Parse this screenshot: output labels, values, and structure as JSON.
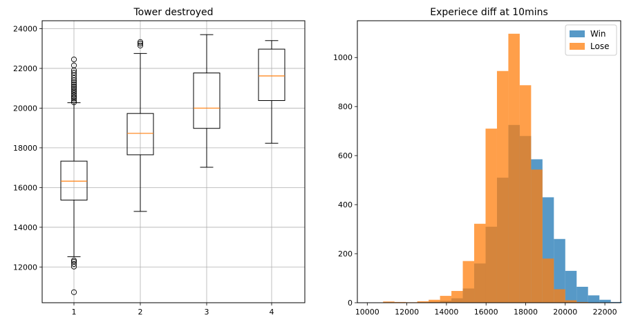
{
  "chart_data": [
    {
      "type": "box",
      "title": "Tower destroyed",
      "xlabel": "",
      "ylabel": "",
      "grid": true,
      "ylim": [
        10200,
        24400
      ],
      "categories": [
        "1",
        "2",
        "3",
        "4"
      ],
      "yticks": [
        12000,
        14000,
        16000,
        18000,
        20000,
        22000,
        24000
      ],
      "boxes": [
        {
          "category": "1",
          "whisker_low": 12520,
          "q1": 15370,
          "median": 16320,
          "q3": 17330,
          "whisker_high": 20270,
          "outliers": [
            10730,
            12020,
            12150,
            12260,
            12330,
            20290,
            20380,
            20480,
            20560,
            20650,
            20740,
            20830,
            20920,
            21010,
            21100,
            21200,
            21300,
            21400,
            21520,
            21650,
            21780,
            21900,
            22150,
            22450
          ]
        },
        {
          "category": "2",
          "whisker_low": 14800,
          "q1": 17650,
          "median": 18730,
          "q3": 19730,
          "whisker_high": 22750,
          "outliers": [
            23150,
            23250,
            23330
          ]
        },
        {
          "category": "3",
          "whisker_low": 17020,
          "q1": 18980,
          "median": 20000,
          "q3": 21770,
          "whisker_high": 23700,
          "outliers": []
        },
        {
          "category": "4",
          "whisker_low": 18230,
          "q1": 20380,
          "median": 21620,
          "q3": 22970,
          "whisker_high": 23400,
          "outliers": []
        }
      ],
      "colors": {
        "box": "#000000",
        "median": "#ff7f0e",
        "grid": "#b0b0b0"
      }
    },
    {
      "type": "histogram",
      "title": "Experiece diff at 10mins",
      "xlabel": "",
      "ylabel": "",
      "grid": false,
      "xlim": [
        9500,
        22800
      ],
      "ylim": [
        0,
        1150
      ],
      "xticks": [
        10000,
        12000,
        14000,
        16000,
        18000,
        20000,
        22000
      ],
      "yticks": [
        0,
        200,
        400,
        600,
        800,
        1000
      ],
      "legend": {
        "placement": "top-right"
      },
      "series": [
        {
          "name": "Win",
          "color": "#1f77b4",
          "opacity": 0.75,
          "bin_start": 10800,
          "bin_width": 575,
          "counts": [
            0,
            0,
            1,
            2,
            4,
            8,
            18,
            58,
            160,
            310,
            510,
            725,
            680,
            585,
            430,
            260,
            130,
            65,
            30,
            12,
            3
          ]
        },
        {
          "name": "Lose",
          "color": "#ff7f0e",
          "opacity": 0.75,
          "bin_start": 10800,
          "bin_width": 575,
          "counts": [
            5,
            3,
            2,
            6,
            12,
            28,
            48,
            170,
            322,
            710,
            945,
            1097,
            887,
            543,
            180,
            55,
            10,
            3,
            1,
            0,
            0
          ]
        }
      ]
    }
  ]
}
